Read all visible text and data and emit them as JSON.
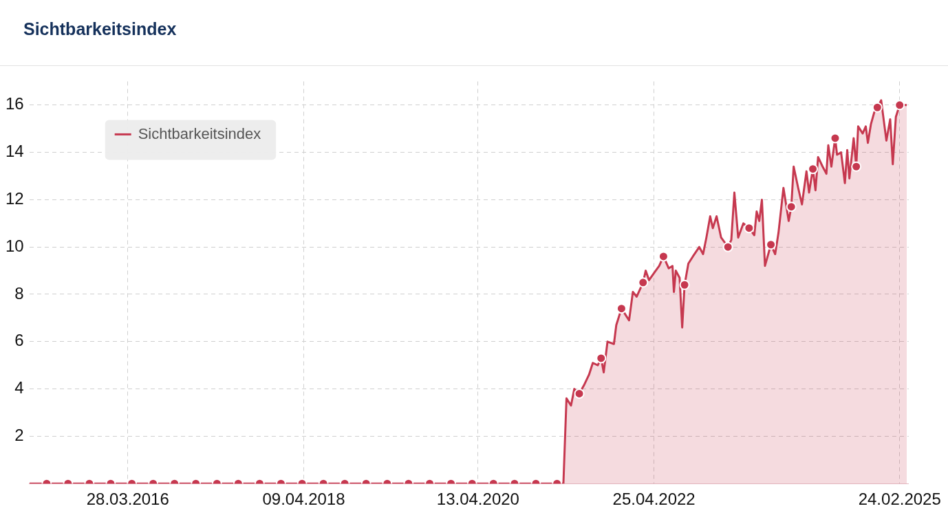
{
  "chart_data": {
    "type": "area",
    "title": "Sichtbarkeitsindex",
    "xlim": [
      "2015-02-07",
      "2025-04-03"
    ],
    "xticks": [
      {
        "value": "2016-03-28",
        "label": "28.03.2016"
      },
      {
        "value": "2018-04-09",
        "label": "09.04.2018"
      },
      {
        "value": "2020-04-13",
        "label": "13.04.2020"
      },
      {
        "value": "2022-04-25",
        "label": "25.04.2022"
      },
      {
        "value": "2025-02-24",
        "label": "24.02.2025"
      }
    ],
    "ylim": [
      0,
      17
    ],
    "yticks": [
      2,
      4,
      6,
      8,
      10,
      12,
      14,
      16
    ],
    "grid": true,
    "legend": "top left",
    "line_style": "solid",
    "marker": "none",
    "series": [
      {
        "name": "Sichtbarkeitsindex",
        "color": "#c6384f",
        "x": [
          "2015-02-07",
          "2015-04-21",
          "2015-07-20",
          "2015-10-18",
          "2016-01-16",
          "2016-04-14",
          "2016-07-13",
          "2016-10-11",
          "2017-01-09",
          "2017-04-08",
          "2017-07-07",
          "2017-10-05",
          "2018-01-03",
          "2018-04-02",
          "2018-07-01",
          "2018-09-29",
          "2018-12-28",
          "2019-03-27",
          "2019-06-25",
          "2019-09-22",
          "2019-12-21",
          "2020-03-19",
          "2020-06-17",
          "2020-09-14",
          "2020-12-13",
          "2021-03-12",
          "2021-04-08",
          "2021-04-21",
          "2021-05-10",
          "2021-05-24",
          "2021-06-14",
          "2021-07-06",
          "2021-07-25",
          "2021-08-10",
          "2021-08-31",
          "2021-09-14",
          "2021-09-25",
          "2021-10-11",
          "2021-11-07",
          "2021-11-17",
          "2021-12-09",
          "2022-01-10",
          "2022-01-26",
          "2022-02-11",
          "2022-03-10",
          "2022-03-21",
          "2022-04-04",
          "2022-04-25",
          "2022-05-17",
          "2022-06-04",
          "2022-06-26",
          "2022-07-12",
          "2022-07-18",
          "2022-07-26",
          "2022-08-11",
          "2022-08-22",
          "2022-09-01",
          "2022-09-17",
          "2022-10-06",
          "2022-11-02",
          "2022-11-18",
          "2022-12-02",
          "2022-12-18",
          "2022-12-29",
          "2023-01-14",
          "2023-02-02",
          "2023-03-03",
          "2023-03-17",
          "2023-03-30",
          "2023-04-15",
          "2023-05-07",
          "2023-05-31",
          "2023-06-22",
          "2023-07-02",
          "2023-07-13",
          "2023-07-24",
          "2023-08-06",
          "2023-08-31",
          "2023-09-18",
          "2023-10-02",
          "2023-10-23",
          "2023-11-14",
          "2023-11-25",
          "2023-12-05",
          "2023-12-24",
          "2024-01-09",
          "2024-01-28",
          "2024-02-08",
          "2024-02-24",
          "2024-03-06",
          "2024-03-17",
          "2024-04-05",
          "2024-04-21",
          "2024-04-29",
          "2024-05-12",
          "2024-05-28",
          "2024-06-05",
          "2024-06-22",
          "2024-07-08",
          "2024-07-18",
          "2024-07-27",
          "2024-08-14",
          "2024-08-25",
          "2024-09-02",
          "2024-09-21",
          "2024-10-04",
          "2024-10-13",
          "2024-10-26",
          "2024-11-09",
          "2024-11-22",
          "2024-12-08",
          "2024-12-30",
          "2025-01-15",
          "2025-01-26",
          "2025-02-08",
          "2025-02-24",
          "2025-03-26"
        ],
        "values": [
          0,
          0,
          0,
          0,
          0,
          0,
          0,
          0,
          0,
          0,
          0,
          0,
          0,
          0,
          0,
          0,
          0,
          0,
          0,
          0,
          0,
          0,
          0,
          0,
          0,
          0,
          0,
          3.6,
          3.3,
          4.0,
          3.8,
          4.2,
          4.6,
          5.1,
          5.0,
          5.3,
          4.7,
          6.0,
          5.9,
          6.7,
          7.4,
          6.9,
          8.1,
          7.9,
          8.5,
          9.0,
          8.6,
          8.9,
          9.2,
          9.6,
          9.1,
          9.2,
          8.1,
          9.0,
          8.7,
          6.6,
          8.4,
          9.3,
          9.6,
          10.0,
          9.7,
          10.4,
          11.3,
          10.8,
          11.3,
          10.4,
          10.0,
          10.3,
          12.3,
          10.4,
          11.0,
          10.8,
          10.5,
          11.5,
          11.1,
          12.0,
          9.2,
          10.1,
          9.7,
          10.6,
          12.5,
          11.1,
          11.7,
          13.4,
          12.5,
          11.8,
          13.2,
          12.3,
          13.3,
          12.4,
          13.8,
          13.4,
          13.1,
          14.3,
          13.4,
          14.6,
          13.9,
          14.0,
          12.7,
          14.1,
          12.9,
          14.6,
          13.4,
          15.1,
          14.8,
          15.1,
          14.4,
          15.2,
          15.7,
          15.9,
          16.2,
          14.5,
          15.4,
          13.5,
          15.5,
          16.0,
          16.0
        ]
      },
      {
        "color": "#c6384f",
        "type": "scatter",
        "marker": "circle",
        "x": [
          "2015-04-21",
          "2015-07-20",
          "2015-10-18",
          "2016-01-16",
          "2016-04-14",
          "2016-07-13",
          "2016-10-11",
          "2017-01-09",
          "2017-04-08",
          "2017-07-07",
          "2017-10-05",
          "2018-01-03",
          "2018-04-02",
          "2018-07-01",
          "2018-09-29",
          "2018-12-28",
          "2019-03-27",
          "2019-06-25",
          "2019-09-22",
          "2019-12-21",
          "2020-03-19",
          "2020-06-17",
          "2020-09-14",
          "2020-12-13",
          "2021-03-12",
          "2021-06-14",
          "2021-09-14",
          "2021-12-09",
          "2022-03-10",
          "2022-06-04",
          "2022-09-01",
          "2023-03-03",
          "2023-05-31",
          "2023-08-31",
          "2023-11-25",
          "2024-02-24",
          "2024-05-28",
          "2024-08-25",
          "2024-11-22",
          "2025-02-24"
        ],
        "values": [
          0,
          0,
          0,
          0,
          0,
          0,
          0,
          0,
          0,
          0,
          0,
          0,
          0,
          0,
          0,
          0,
          0,
          0,
          0,
          0,
          0,
          0,
          0,
          0,
          0,
          3.8,
          5.3,
          7.4,
          8.5,
          9.6,
          8.4,
          10.0,
          10.8,
          10.1,
          11.7,
          13.3,
          14.6,
          13.4,
          15.9,
          16.0
        ]
      }
    ]
  }
}
